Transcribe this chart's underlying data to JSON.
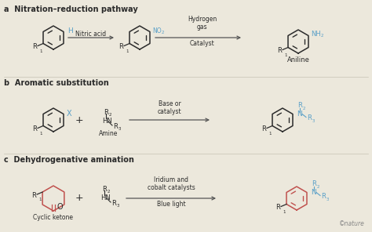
{
  "bg_color": "#ece8dc",
  "blue_color": "#5aa0c8",
  "red_color": "#c0504d",
  "black_color": "#2a2a2a",
  "gray_color": "#888888",
  "section_a_title": "a  Nitration–reduction pathway",
  "section_b_title": "b  Aromatic substitution",
  "section_c_title": "c  Dehydrogenative amination",
  "nitric_acid": "Nitric acid",
  "hydrogen_gas": "Hydrogen\ngas",
  "catalyst": "Catalyst",
  "aniline": "Aniline",
  "base_or_catalyst": "Base or\ncatalyst",
  "amine": "Amine",
  "iridium": "Iridium and\ncobalt catalysts",
  "blue_light": "Blue light",
  "cyclic_ketone": "Cyclic ketone",
  "nature_text": "©nature"
}
